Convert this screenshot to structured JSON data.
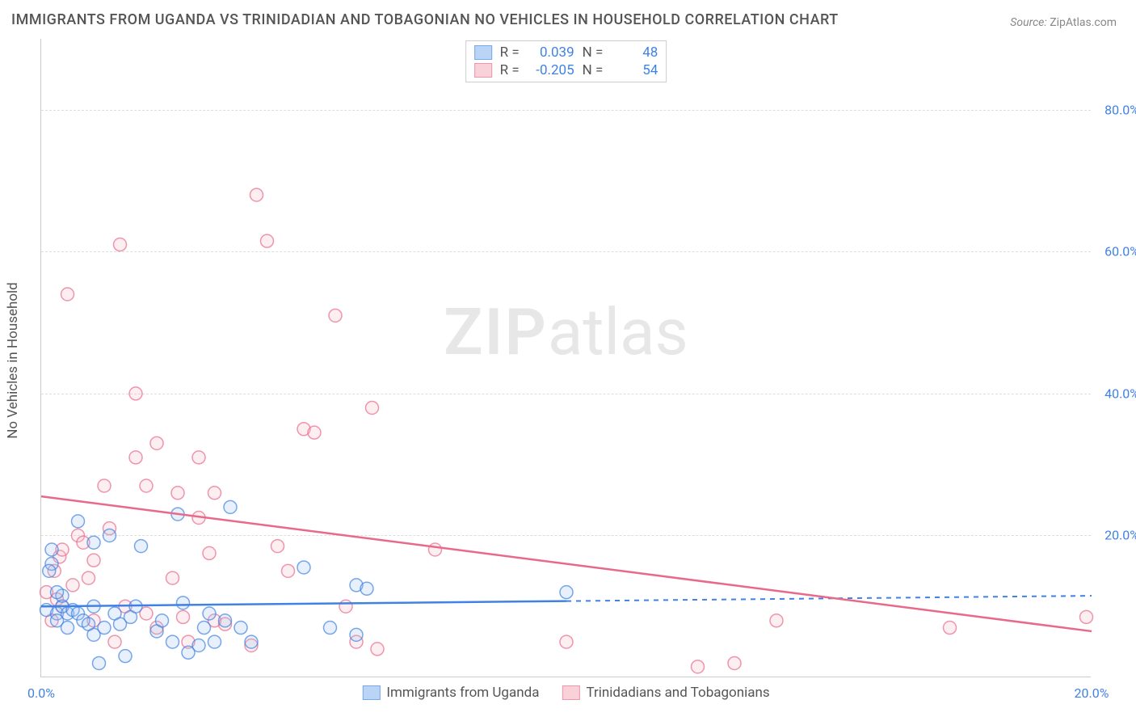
{
  "title": "IMMIGRANTS FROM UGANDA VS TRINIDADIAN AND TOBAGONIAN NO VEHICLES IN HOUSEHOLD CORRELATION CHART",
  "source_label": "Source:",
  "source_value": "ZipAtlas.com",
  "watermark_zip": "ZIP",
  "watermark_atlas": "atlas",
  "y_axis_title": "No Vehicles in Household",
  "chart": {
    "type": "scatter",
    "xlim": [
      0,
      20
    ],
    "ylim": [
      0,
      90
    ],
    "x_ticks": [
      {
        "v": 0,
        "label": "0.0%"
      },
      {
        "v": 20,
        "label": "20.0%"
      }
    ],
    "y_ticks": [
      {
        "v": 20,
        "label": "20.0%"
      },
      {
        "v": 40,
        "label": "40.0%"
      },
      {
        "v": 60,
        "label": "60.0%"
      },
      {
        "v": 80,
        "label": "80.0%"
      }
    ],
    "grid_color": "#dddddd",
    "background_color": "#ffffff",
    "marker_radius": 8,
    "marker_stroke_width": 1.5,
    "marker_fill_opacity": 0.25,
    "line_width": 2.5,
    "series": [
      {
        "id": "uganda",
        "label": "Immigrants from Uganda",
        "color_stroke": "#4082e3",
        "color_fill": "#9ec2f2",
        "r_value": "0.039",
        "n_value": "48",
        "trend": {
          "x1": 0,
          "y1": 10.0,
          "x2": 20,
          "y2": 11.5,
          "solid_until_x": 10
        },
        "points": [
          [
            0.1,
            9.5
          ],
          [
            0.2,
            18
          ],
          [
            0.2,
            16
          ],
          [
            0.3,
            9
          ],
          [
            0.3,
            8
          ],
          [
            0.4,
            10
          ],
          [
            0.4,
            11.5
          ],
          [
            0.5,
            7
          ],
          [
            0.5,
            9
          ],
          [
            0.6,
            9.5
          ],
          [
            0.7,
            9
          ],
          [
            0.7,
            22
          ],
          [
            0.8,
            8
          ],
          [
            0.9,
            7.5
          ],
          [
            1.0,
            19
          ],
          [
            1.0,
            10
          ],
          [
            1.1,
            2
          ],
          [
            1.2,
            7
          ],
          [
            1.3,
            20
          ],
          [
            1.4,
            9
          ],
          [
            1.5,
            7.5
          ],
          [
            1.6,
            3
          ],
          [
            1.7,
            8.5
          ],
          [
            1.8,
            10
          ],
          [
            1.9,
            18.5
          ],
          [
            1.0,
            6
          ],
          [
            0.3,
            12
          ],
          [
            0.15,
            15
          ],
          [
            2.2,
            6.5
          ],
          [
            2.3,
            8
          ],
          [
            2.5,
            5
          ],
          [
            2.6,
            23
          ],
          [
            2.7,
            10.5
          ],
          [
            2.8,
            3.5
          ],
          [
            3.0,
            4.5
          ],
          [
            3.1,
            7
          ],
          [
            3.2,
            9
          ],
          [
            3.3,
            5
          ],
          [
            3.5,
            8
          ],
          [
            3.6,
            24
          ],
          [
            3.8,
            7
          ],
          [
            4.0,
            5
          ],
          [
            5.0,
            15.5
          ],
          [
            5.5,
            7
          ],
          [
            6.0,
            13
          ],
          [
            6.0,
            6
          ],
          [
            6.2,
            12.5
          ],
          [
            10.0,
            12
          ]
        ]
      },
      {
        "id": "trinidad",
        "label": "Trinidadians and Tobagonians",
        "color_stroke": "#e86a8a",
        "color_fill": "#f7bec9",
        "r_value": "-0.205",
        "n_value": "54",
        "trend": {
          "x1": 0,
          "y1": 25.5,
          "x2": 20,
          "y2": 6.5,
          "solid_until_x": 20
        },
        "points": [
          [
            0.1,
            12
          ],
          [
            0.2,
            8
          ],
          [
            0.25,
            15
          ],
          [
            0.3,
            11
          ],
          [
            0.35,
            17
          ],
          [
            0.4,
            18
          ],
          [
            0.4,
            10
          ],
          [
            0.5,
            54
          ],
          [
            0.6,
            13
          ],
          [
            0.7,
            20
          ],
          [
            0.8,
            19
          ],
          [
            0.9,
            14
          ],
          [
            1.0,
            16.5
          ],
          [
            1.0,
            8
          ],
          [
            1.2,
            27
          ],
          [
            1.3,
            21
          ],
          [
            1.4,
            5
          ],
          [
            1.5,
            61
          ],
          [
            1.6,
            10
          ],
          [
            1.8,
            31
          ],
          [
            1.8,
            40
          ],
          [
            2.0,
            27
          ],
          [
            2.0,
            9
          ],
          [
            2.2,
            33
          ],
          [
            2.2,
            7
          ],
          [
            2.5,
            14
          ],
          [
            2.6,
            26
          ],
          [
            2.7,
            8.5
          ],
          [
            2.8,
            5
          ],
          [
            3.0,
            22.5
          ],
          [
            3.0,
            31
          ],
          [
            3.2,
            17.5
          ],
          [
            3.3,
            26
          ],
          [
            3.3,
            8
          ],
          [
            3.5,
            7.5
          ],
          [
            4.0,
            4.5
          ],
          [
            4.1,
            68
          ],
          [
            4.3,
            61.5
          ],
          [
            4.5,
            18.5
          ],
          [
            4.7,
            15
          ],
          [
            5.0,
            35
          ],
          [
            5.2,
            34.5
          ],
          [
            5.6,
            51
          ],
          [
            5.8,
            10
          ],
          [
            6.0,
            5
          ],
          [
            6.3,
            38
          ],
          [
            6.4,
            4
          ],
          [
            7.5,
            18
          ],
          [
            10.0,
            5
          ],
          [
            12.5,
            1.5
          ],
          [
            13.2,
            2
          ],
          [
            14.0,
            8
          ],
          [
            17.3,
            7
          ],
          [
            19.9,
            8.5
          ]
        ]
      }
    ]
  },
  "legend_top": {
    "r_label": "R =",
    "n_label": "N ="
  }
}
